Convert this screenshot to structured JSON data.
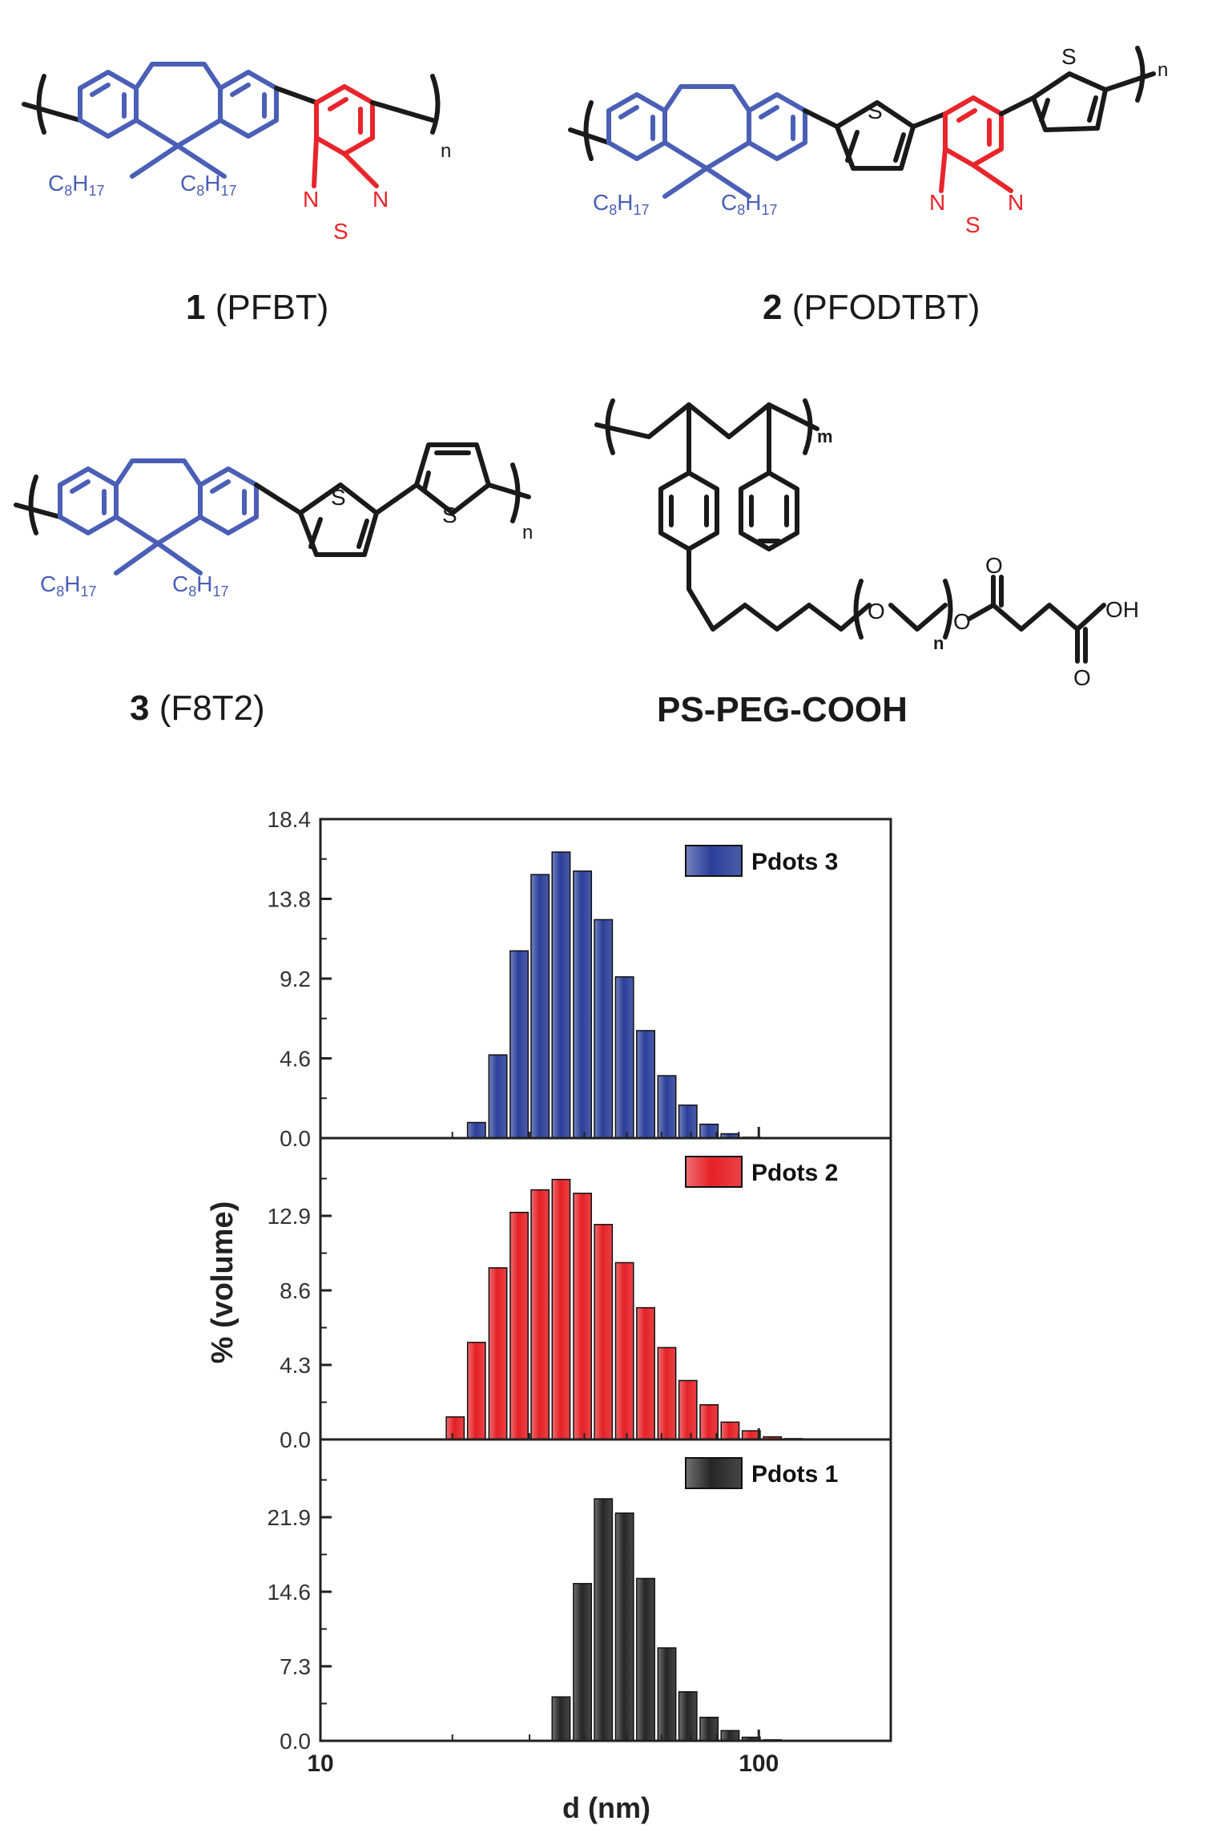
{
  "colors": {
    "fluorene": "#4a5fb5",
    "benzothiadiazole": "#e8252b",
    "black": "#1a1a1a",
    "pdots3_bar": "#2b3f99",
    "pdots2_bar": "#e52126",
    "pdots1_bar": "#262626"
  },
  "structures": {
    "s1": {
      "num": "1",
      "name": " (PFBT)"
    },
    "s2": {
      "num": "2",
      "name": " (PFODTBT)"
    },
    "s3": {
      "num": "3",
      "name": " (F8T2)"
    },
    "s4": {
      "name": "PS-PEG-COOH"
    },
    "alkyl": {
      "c": "C",
      "c_sub": "8",
      "h": "H",
      "h_sub": "17"
    },
    "atoms": {
      "S": "S",
      "N": "N",
      "O": "O",
      "OH": "OH"
    },
    "subscripts": {
      "n": "n",
      "m": "m"
    }
  },
  "chart_data": {
    "type": "bar",
    "xlabel": "d (nm)",
    "ylabel": "% (volume)",
    "x_scale": "log",
    "xlim": [
      10,
      200
    ],
    "xticks": [
      10,
      100
    ],
    "xtick_labels": [
      "10",
      "100"
    ],
    "panels": [
      {
        "legend": "Pdots 3",
        "ylim": [
          0,
          18.4
        ],
        "yticks": [
          "0.0",
          "4.6",
          "9.2",
          "13.8",
          "18.4"
        ],
        "x": [
          22.7,
          25.4,
          28.4,
          31.7,
          35.4,
          39.6,
          44.2,
          49.4,
          55.2,
          61.7,
          68.9,
          77.0,
          86.0,
          96.1,
          107.4,
          120.0,
          134.1,
          149.8
        ],
        "values": [
          0.9,
          4.8,
          10.8,
          15.2,
          16.5,
          15.4,
          12.6,
          9.3,
          6.2,
          3.6,
          1.9,
          0.8,
          0.25,
          0.05,
          0,
          0,
          0,
          0
        ]
      },
      {
        "legend": "Pdots 2",
        "ylim": [
          0,
          17.2
        ],
        "yticks": [
          "0.0",
          "4.3",
          "8.6",
          "12.9"
        ],
        "x": [
          20.3,
          22.7,
          25.4,
          28.4,
          31.7,
          35.4,
          39.6,
          44.2,
          49.4,
          55.2,
          61.7,
          68.9,
          77.0,
          86.0,
          96.1,
          107.4,
          120.0,
          134.1
        ],
        "values": [
          1.3,
          5.6,
          9.9,
          13.1,
          14.4,
          15.0,
          14.2,
          12.4,
          10.2,
          7.6,
          5.3,
          3.4,
          2.0,
          1.0,
          0.5,
          0.15,
          0.05,
          0
        ]
      },
      {
        "legend": "Pdots 1",
        "ylim": [
          0,
          29.2
        ],
        "yticks": [
          "0.0",
          "7.3",
          "14.6",
          "21.9"
        ],
        "x": [
          35.4,
          39.6,
          44.2,
          49.4,
          55.2,
          61.7,
          68.9,
          77.0,
          86.0,
          96.1,
          107.4
        ],
        "values": [
          4.3,
          15.4,
          23.7,
          22.3,
          15.9,
          9.1,
          4.8,
          2.3,
          1.0,
          0.35,
          0.1
        ]
      }
    ]
  }
}
